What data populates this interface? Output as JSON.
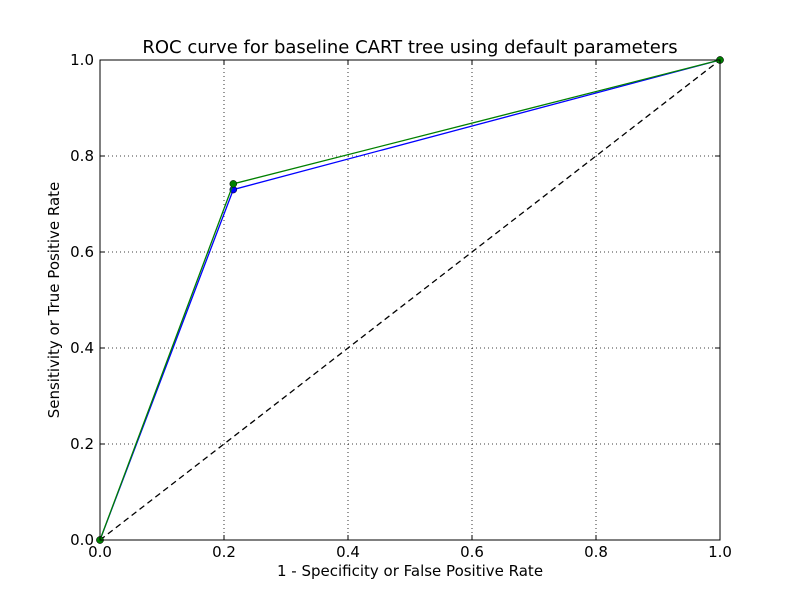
{
  "chart_data": {
    "type": "line",
    "title": "ROC curve for baseline CART tree using default parameters",
    "xlabel": "1 - Specificity or False Positive Rate",
    "ylabel": "Sensitivity or True Positive Rate",
    "xlim": [
      0.0,
      1.0
    ],
    "ylim": [
      0.0,
      1.0
    ],
    "xticks": [
      0.0,
      0.2,
      0.4,
      0.6,
      0.8,
      1.0
    ],
    "yticks": [
      0.0,
      0.2,
      0.4,
      0.6,
      0.8,
      1.0
    ],
    "xtick_labels": [
      "0.0",
      "0.2",
      "0.4",
      "0.6",
      "0.8",
      "1.0"
    ],
    "ytick_labels": [
      "0.0",
      "0.2",
      "0.4",
      "0.6",
      "0.8",
      "1.0"
    ],
    "grid": true,
    "legend": "none",
    "series": [
      {
        "color": "#0000ff",
        "marker": "circle",
        "x": [
          0.0,
          0.215,
          1.0
        ],
        "y": [
          0.0,
          0.73,
          1.0
        ]
      },
      {
        "color": "#008000",
        "marker": "circle",
        "x": [
          0.0,
          0.215,
          1.0
        ],
        "y": [
          0.0,
          0.742,
          1.0
        ]
      },
      {
        "color": "#000000",
        "style": "dashed",
        "marker": "none",
        "x": [
          0.0,
          1.0
        ],
        "y": [
          0.0,
          1.0
        ]
      }
    ]
  }
}
